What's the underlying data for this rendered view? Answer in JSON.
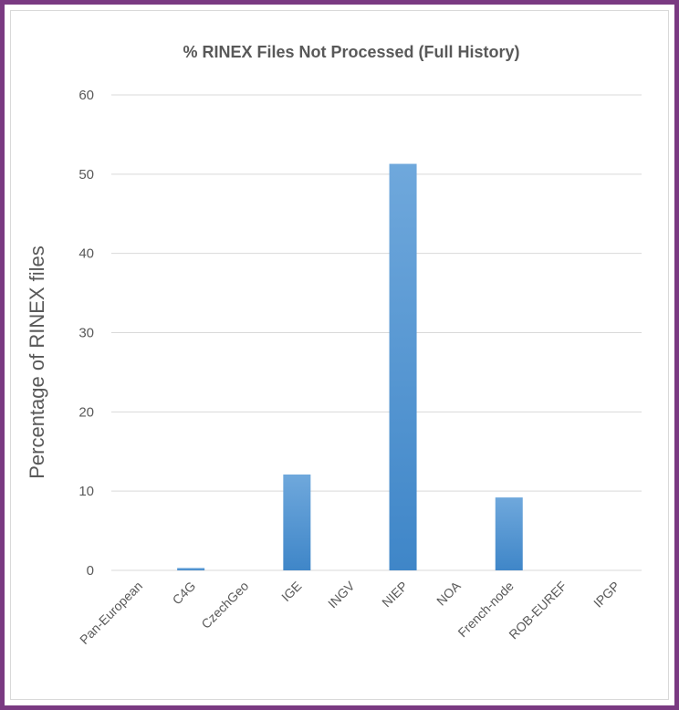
{
  "chart_data": {
    "type": "bar",
    "title": "% RINEX Files Not Processed (Full History)",
    "ylabel": "Percentage of RINEX files",
    "xlabel": "",
    "categories": [
      "Pan-European",
      "C4G",
      "CzechGeo",
      "IGE",
      "INGV",
      "NIEP",
      "NOA",
      "French-node",
      "ROB-EUREF",
      "IPGP"
    ],
    "values": [
      0,
      0.3,
      0,
      12.1,
      0,
      51.3,
      0,
      9.2,
      0,
      0
    ],
    "ylim": [
      0,
      60
    ],
    "yticks": [
      "0",
      "10",
      "20",
      "30",
      "40",
      "50",
      "60"
    ],
    "grid": true,
    "legend": "none",
    "bar_color_top": "#6fa8dc",
    "bar_color_bottom": "#3f86c8"
  },
  "colors": {
    "frame_border": "#7a3a82",
    "gridline": "#d9d9d9",
    "text": "#595959"
  }
}
